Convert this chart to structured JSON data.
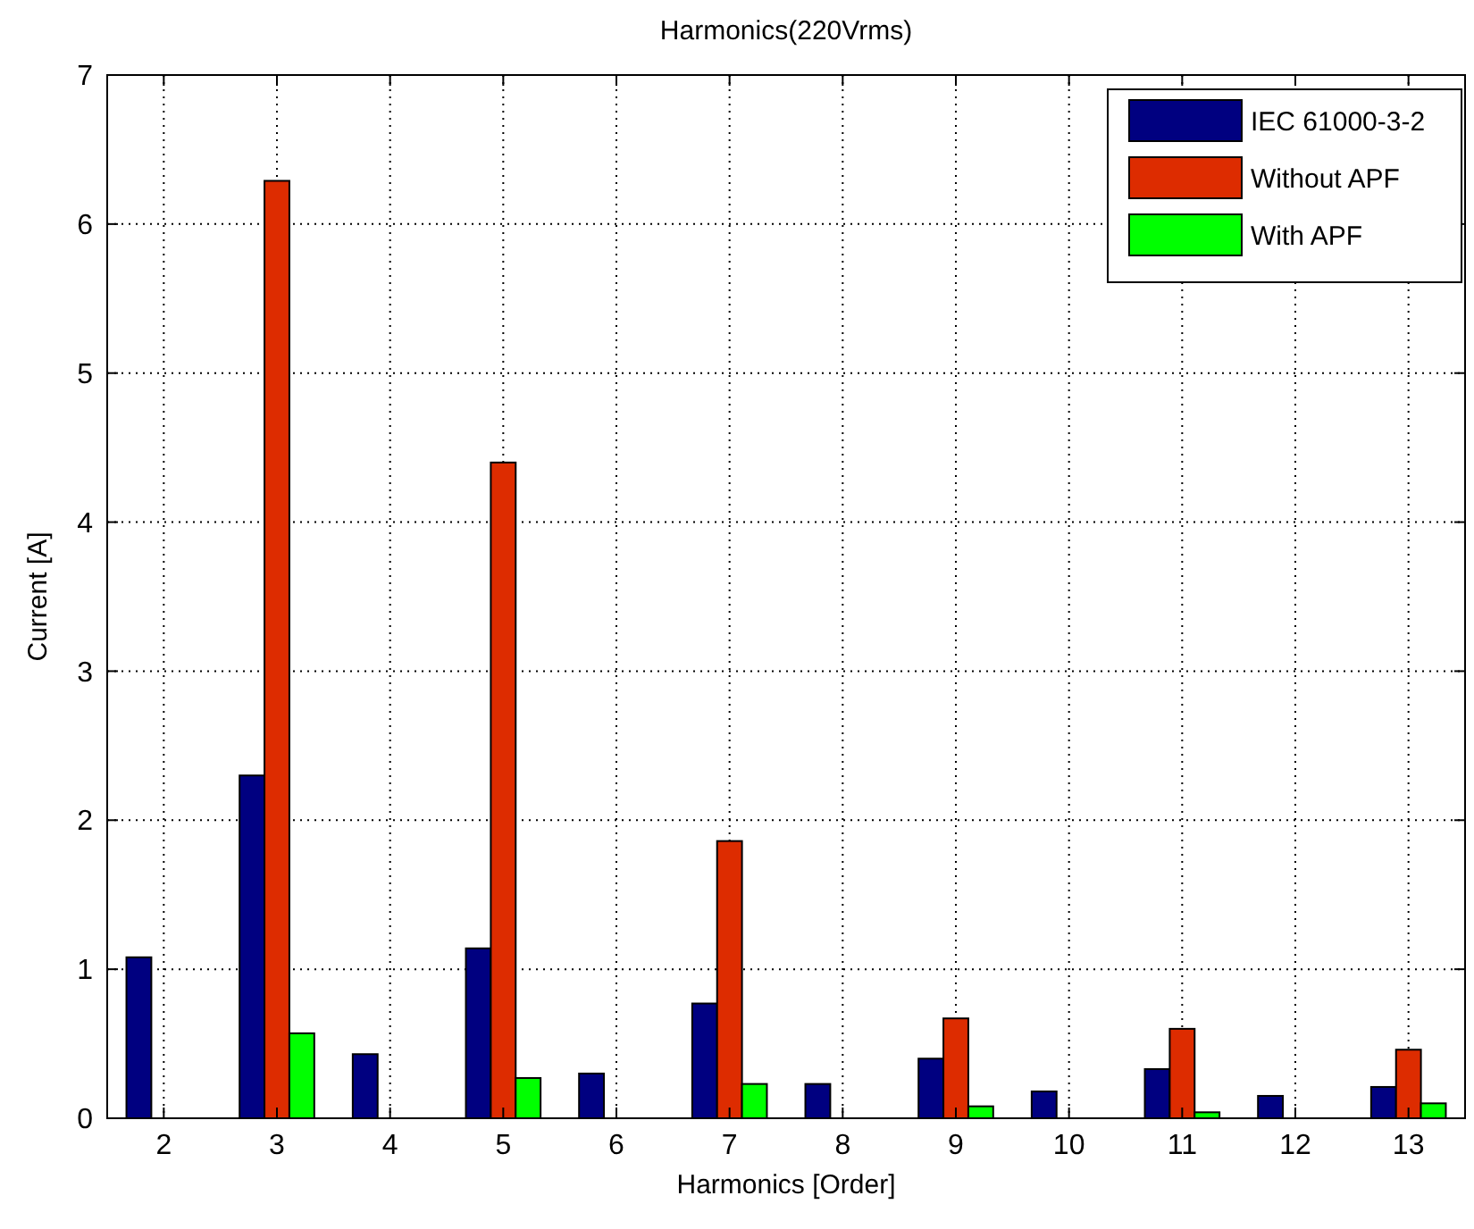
{
  "chart_data": {
    "type": "bar",
    "title": "Harmonics(220Vrms)",
    "xlabel": "Harmonics [Order]",
    "ylabel": "Current [A]",
    "categories": [
      "2",
      "3",
      "4",
      "5",
      "6",
      "7",
      "8",
      "9",
      "10",
      "11",
      "12",
      "13"
    ],
    "series": [
      {
        "name": "IEC 61000-3-2",
        "color": "#000080",
        "values": [
          1.08,
          2.3,
          0.43,
          1.14,
          0.3,
          0.77,
          0.23,
          0.4,
          0.18,
          0.33,
          0.15,
          0.21
        ]
      },
      {
        "name": "Without APF",
        "color": "#dd2c00",
        "values": [
          0,
          6.29,
          0,
          4.4,
          0,
          1.86,
          0,
          0.67,
          0,
          0.6,
          0,
          0.46
        ]
      },
      {
        "name": "With APF",
        "color": "#00ff00",
        "values": [
          0,
          0.57,
          0,
          0.27,
          0,
          0.23,
          0,
          0.08,
          0,
          0.04,
          0,
          0.1
        ]
      }
    ],
    "ylim": [
      0,
      7
    ],
    "yticks": [
      0,
      1,
      2,
      3,
      4,
      5,
      6,
      7
    ],
    "grid": true,
    "legend": "top right"
  }
}
